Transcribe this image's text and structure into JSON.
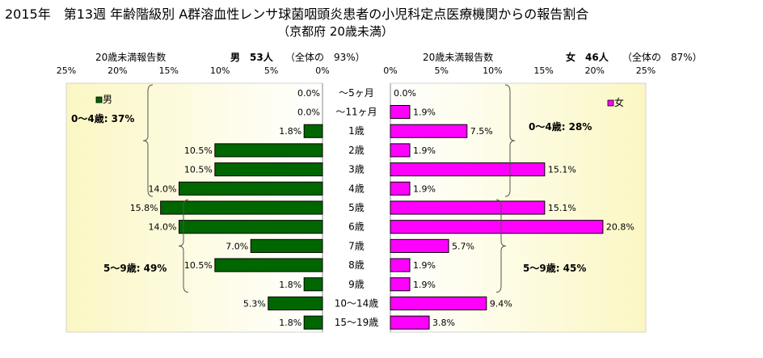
{
  "chart_data": {
    "type": "bar",
    "title": "2015年　第13週 年齢階級別 A群溶血性レンサ球菌咽頭炎患者の小児科定点医療機関からの報告割合",
    "subtitle": "（京都府 20歳未満）",
    "categories": [
      "～5ヶ月",
      "～11ヶ月",
      "1歳",
      "2歳",
      "3歳",
      "4歳",
      "5歳",
      "6歳",
      "7歳",
      "8歳",
      "9歳",
      "10～14歳",
      "15～19歳"
    ],
    "xlim": [
      0,
      25
    ],
    "ticks": [
      "25%",
      "20%",
      "15%",
      "10%",
      "5%",
      "0%"
    ],
    "ticks_right": [
      "0%",
      "5%",
      "10%",
      "15%",
      "20%",
      "25%"
    ],
    "series": [
      {
        "name": "男",
        "side": "left",
        "color": "#006600",
        "header_label": "20歳未満報告数",
        "header_count": "男　53人",
        "header_share": "（全体の　93%）",
        "values": [
          0.0,
          0.0,
          1.8,
          10.5,
          10.5,
          14.0,
          15.8,
          14.0,
          7.0,
          10.5,
          1.8,
          5.3,
          1.8
        ],
        "labels": [
          "0.0%",
          "0.0%",
          "1.8%",
          "10.5%",
          "10.5%",
          "14.0%",
          "15.8%",
          "14.0%",
          "7.0%",
          "10.5%",
          "1.8%",
          "5.3%",
          "1.8%"
        ],
        "groups": [
          {
            "label": "0～4歳: 37%",
            "from": 0,
            "to": 5
          },
          {
            "label": "5～9歳: 49%",
            "from": 6,
            "to": 10
          }
        ]
      },
      {
        "name": "女",
        "side": "right",
        "color": "#ff00ff",
        "header_label": "20歳未満報告数",
        "header_count": "女　46人",
        "header_share": "（全体の　87%）",
        "values": [
          0.0,
          1.9,
          7.5,
          1.9,
          15.1,
          1.9,
          15.1,
          20.8,
          5.7,
          1.9,
          1.9,
          9.4,
          3.8
        ],
        "labels": [
          "0.0%",
          "1.9%",
          "7.5%",
          "1.9%",
          "15.1%",
          "1.9%",
          "15.1%",
          "20.8%",
          "5.7%",
          "1.9%",
          "1.9%",
          "9.4%",
          "3.8%"
        ],
        "groups": [
          {
            "label": "0～4歳: 28%",
            "from": 0,
            "to": 5
          },
          {
            "label": "5～9歳: 45%",
            "from": 6,
            "to": 10
          }
        ]
      }
    ],
    "legend": [
      "男",
      "女"
    ],
    "grid": false
  }
}
